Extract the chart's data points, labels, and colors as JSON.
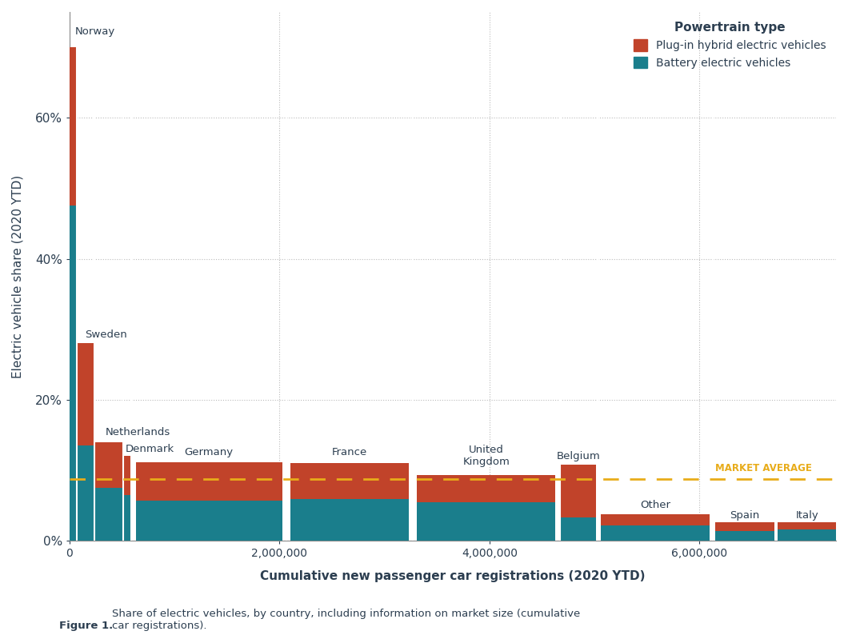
{
  "countries": [
    "Norway",
    "Sweden",
    "Netherlands",
    "Denmark",
    "Germany",
    "France",
    "United Kingdom",
    "Belgium",
    "Other",
    "Spain",
    "Italy"
  ],
  "registrations": [
    68000,
    170000,
    270000,
    80000,
    1480000,
    1200000,
    1400000,
    360000,
    1100000,
    600000,
    600000
  ],
  "bev_share": [
    0.475,
    0.135,
    0.075,
    0.065,
    0.057,
    0.059,
    0.055,
    0.033,
    0.022,
    0.014,
    0.016
  ],
  "phev_share": [
    0.225,
    0.145,
    0.065,
    0.055,
    0.054,
    0.051,
    0.038,
    0.075,
    0.016,
    0.012,
    0.01
  ],
  "market_average": 0.087,
  "color_phev": "#C1432A",
  "color_bev": "#1A7E8C",
  "color_market_avg": "#E8AC1A",
  "background_color": "#FFFFFF",
  "grid_color": "#BBBBBB",
  "ylabel": "Electric vehicle share (2020 YTD)",
  "xlabel": "Cumulative new passenger car registrations (2020 YTD)",
  "legend_title": "Powertrain type",
  "legend_phev": "Plug-in hybrid electric vehicles",
  "legend_bev": "Battery electric vehicles",
  "market_avg_label": "MARKET AVERAGE",
  "caption": "Figure 1. Share of electric vehicles, by country, including information on market size (cumulative\ncar registrations).",
  "ylim": [
    0,
    0.75
  ],
  "ytick_vals": [
    0.0,
    0.2,
    0.4,
    0.6
  ],
  "ytick_labels": [
    "0%",
    "20%",
    "40%",
    "60%"
  ],
  "xtick_vals": [
    0,
    2000000,
    4000000,
    6000000
  ],
  "xtick_labels": [
    "0",
    "2,000,000",
    "4,000,000",
    "6,000,000"
  ],
  "xlim": [
    0,
    7300000
  ]
}
